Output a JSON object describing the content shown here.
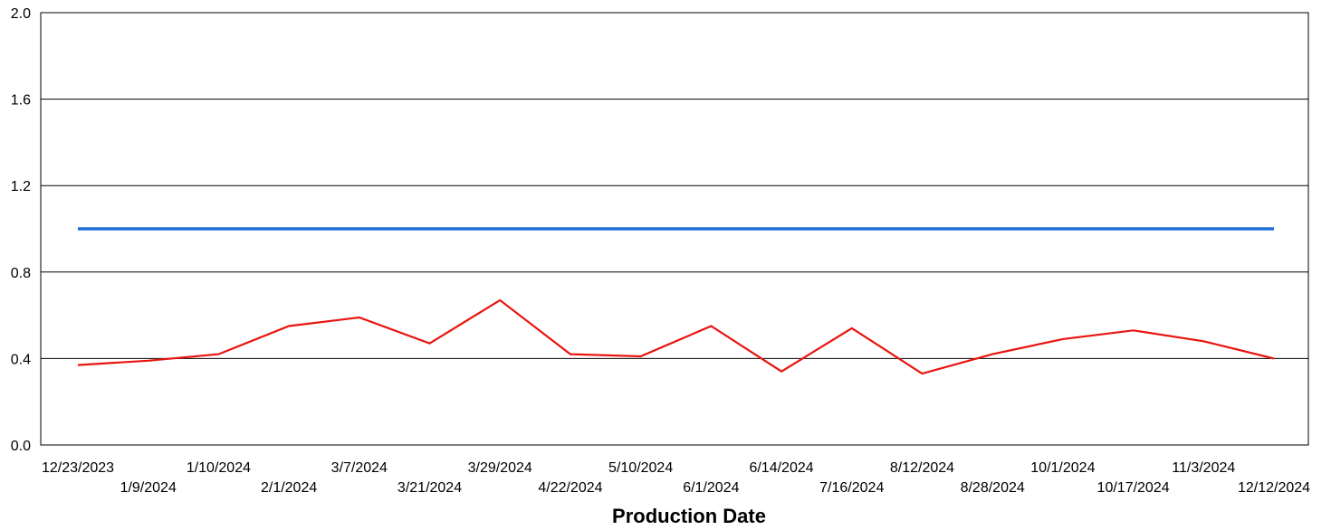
{
  "chart_data": {
    "type": "line",
    "title": "",
    "xlabel": "Production Date",
    "ylabel": "",
    "ylim": [
      0.0,
      2.0
    ],
    "yticks": [
      "0.0",
      "0.4",
      "0.8",
      "1.2",
      "1.6",
      "2.0"
    ],
    "grid": true,
    "legend": "none",
    "categories": [
      "12/23/2023",
      "1/9/2024",
      "1/10/2024",
      "2/1/2024",
      "3/7/2024",
      "3/21/2024",
      "3/29/2024",
      "4/22/2024",
      "5/10/2024",
      "6/1/2024",
      "6/14/2024",
      "7/16/2024",
      "8/12/2024",
      "8/28/2024",
      "10/1/2024",
      "10/17/2024",
      "11/3/2024",
      "12/12/2024"
    ],
    "series": [
      {
        "color": "#1f6fd6",
        "values": [
          1.0,
          1.0,
          1.0,
          1.0,
          1.0,
          1.0,
          1.0,
          1.0,
          1.0,
          1.0,
          1.0,
          1.0,
          1.0,
          1.0,
          1.0,
          1.0,
          1.0,
          1.0
        ]
      },
      {
        "color": "#e8140f",
        "values": [
          0.37,
          0.39,
          0.42,
          0.55,
          0.59,
          0.47,
          0.67,
          0.42,
          0.41,
          0.55,
          0.34,
          0.54,
          0.33,
          0.42,
          0.49,
          0.53,
          0.48,
          0.4
        ]
      }
    ]
  }
}
